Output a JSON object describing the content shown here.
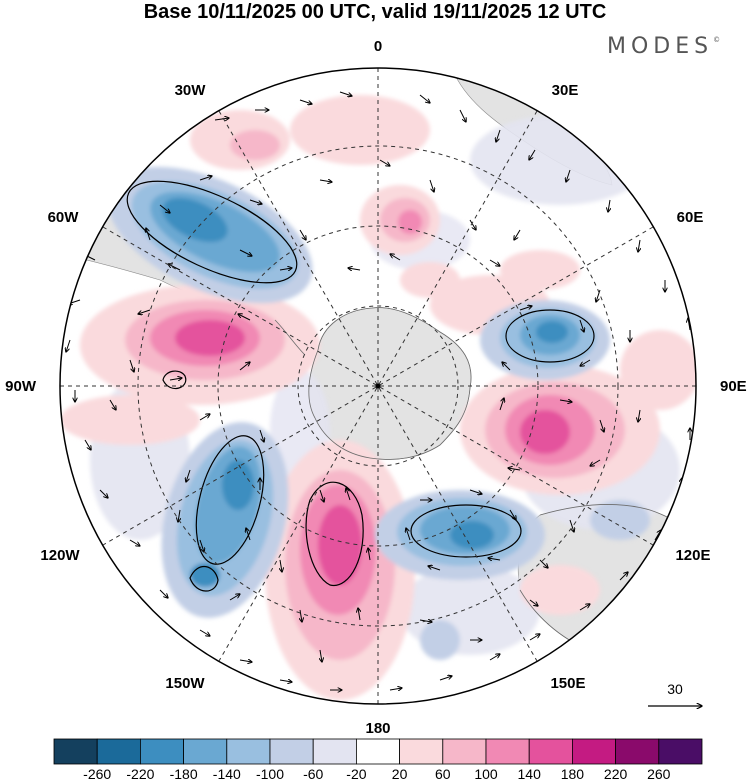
{
  "title": "Base 10/11/2025 00 UTC, valid 19/11/2025 12 UTC",
  "brand": "MODES",
  "brand_mark": "©",
  "longitude_labels": {
    "n0": "0",
    "e30": "30E",
    "e60": "60E",
    "e90": "90E",
    "e120": "120E",
    "e150": "150E",
    "n180": "180",
    "w150": "150W",
    "w120": "120W",
    "w90": "90W",
    "w60": "60W",
    "w30": "30W"
  },
  "vector_reference": "30",
  "colorbar": {
    "labels": [
      "-260",
      "-220",
      "-180",
      "-140",
      "-100",
      "-60",
      "-20",
      "20",
      "60",
      "100",
      "140",
      "180",
      "220",
      "260"
    ],
    "colors": [
      "#14405e",
      "#1b6a9a",
      "#3d8ec0",
      "#6aa8d2",
      "#99bfe0",
      "#c2cfe6",
      "#e3e4f1",
      "#ffffff",
      "#fadadd",
      "#f6b7c9",
      "#f189b4",
      "#e4529d",
      "#c41b82",
      "#8a0a6b",
      "#4a0d66"
    ]
  },
  "anomaly_centers": [
    {
      "sign": "negative",
      "region": "south of South America / Drake Passage",
      "level": "-180"
    },
    {
      "sign": "positive",
      "region": "west of Antarctic Peninsula",
      "level": "140"
    },
    {
      "sign": "negative",
      "region": "south Indian Ocean near 60E",
      "level": "-180"
    },
    {
      "sign": "positive",
      "region": "south Indian Ocean near 90E",
      "level": "140"
    },
    {
      "sign": "negative",
      "region": "south of Australia",
      "level": "-180"
    },
    {
      "sign": "positive",
      "region": "Ross Sea / 170W",
      "level": "140"
    },
    {
      "sign": "negative",
      "region": "Amundsen Sea / 130W",
      "level": "-180"
    }
  ]
}
